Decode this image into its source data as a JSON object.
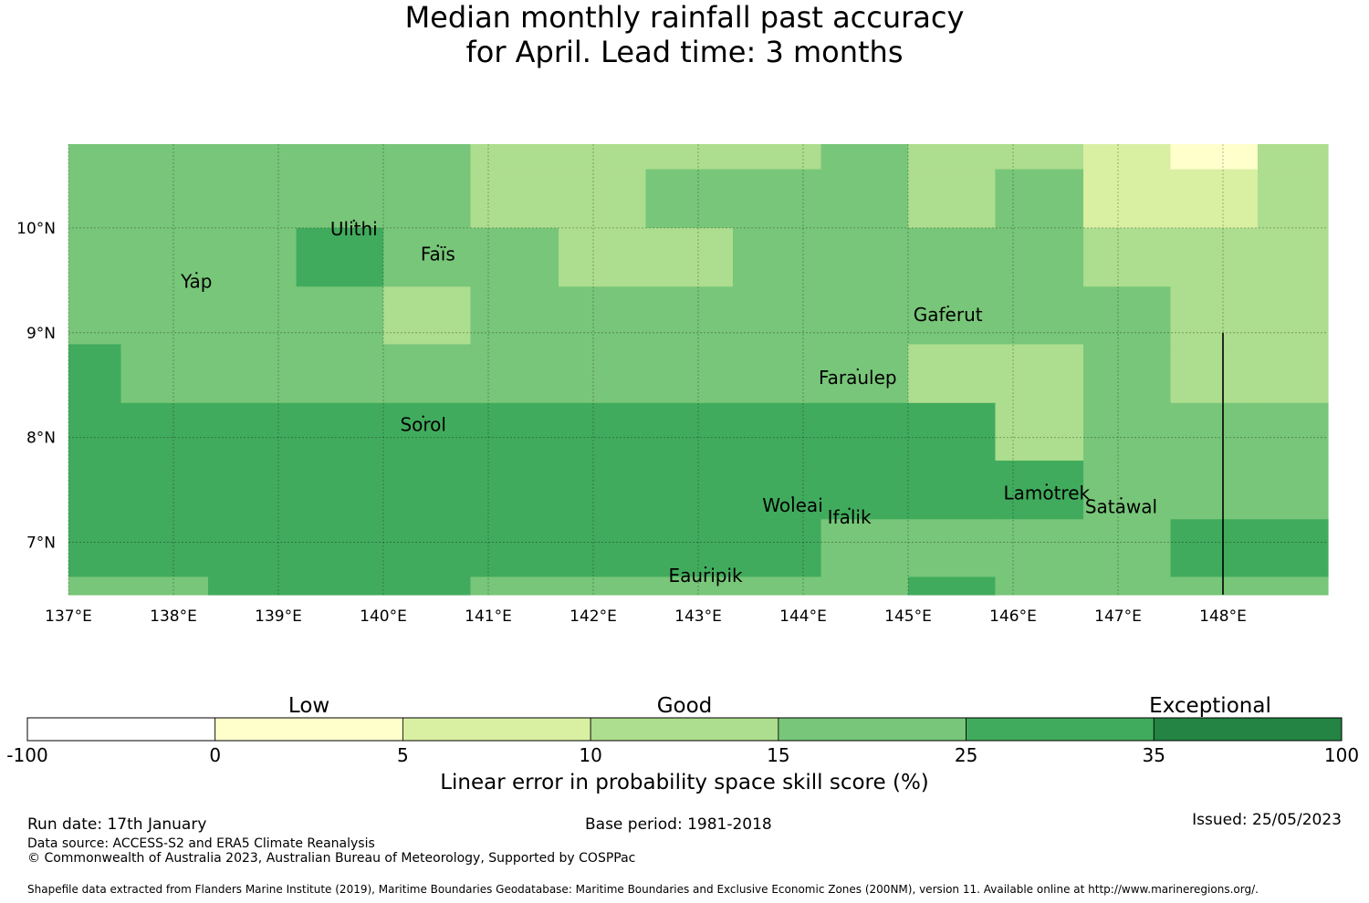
{
  "title": {
    "line1": "Median monthly rainfall past accuracy",
    "line2": "for April. Lead time: 3 months"
  },
  "map": {
    "lon_range": [
      137.0,
      149.0
    ],
    "lat_range": [
      6.5,
      10.8
    ],
    "x_ticks": [
      {
        "value": 137,
        "label": "137°E"
      },
      {
        "value": 138,
        "label": "138°E"
      },
      {
        "value": 139,
        "label": "139°E"
      },
      {
        "value": 140,
        "label": "140°E"
      },
      {
        "value": 141,
        "label": "141°E"
      },
      {
        "value": 142,
        "label": "142°E"
      },
      {
        "value": 143,
        "label": "143°E"
      },
      {
        "value": 144,
        "label": "144°E"
      },
      {
        "value": 145,
        "label": "145°E"
      },
      {
        "value": 146,
        "label": "146°E"
      },
      {
        "value": 147,
        "label": "147°E"
      },
      {
        "value": 148,
        "label": "148°E"
      }
    ],
    "y_ticks": [
      {
        "value": 10,
        "label": "10°N"
      },
      {
        "value": 9,
        "label": "9°N"
      },
      {
        "value": 8,
        "label": "8°N"
      },
      {
        "value": 7,
        "label": "7°N"
      }
    ],
    "cell_colors": [
      "#ffffff",
      "#ffffcc",
      "#d9f0a3",
      "#addd8e",
      "#78c679",
      "#41ab5d",
      "#238443"
    ],
    "grid_lon_edges": [
      137.0,
      137.5,
      138.33,
      139.17,
      140.0,
      140.83,
      141.67,
      142.5,
      143.33,
      144.17,
      145.0,
      145.83,
      146.67,
      147.5,
      148.33,
      149.0
    ],
    "grid_lat_edges": [
      10.8,
      10.56,
      10.0,
      9.44,
      8.89,
      8.33,
      7.78,
      7.22,
      6.67,
      6.5
    ],
    "grid_classes": [
      [
        4,
        4,
        4,
        4,
        4,
        3,
        3,
        3,
        3,
        4,
        3,
        3,
        2,
        1,
        3
      ],
      [
        4,
        4,
        4,
        4,
        4,
        3,
        3,
        4,
        4,
        4,
        3,
        4,
        2,
        2,
        3
      ],
      [
        4,
        4,
        4,
        5,
        4,
        4,
        3,
        3,
        4,
        4,
        4,
        4,
        3,
        3,
        3
      ],
      [
        4,
        4,
        4,
        4,
        3,
        4,
        4,
        4,
        4,
        4,
        4,
        4,
        4,
        3,
        3
      ],
      [
        5,
        4,
        4,
        4,
        4,
        4,
        4,
        4,
        4,
        4,
        3,
        3,
        4,
        3,
        3
      ],
      [
        5,
        5,
        5,
        5,
        5,
        5,
        5,
        5,
        5,
        5,
        5,
        3,
        4,
        4,
        4
      ],
      [
        5,
        5,
        5,
        5,
        5,
        5,
        5,
        5,
        5,
        5,
        5,
        5,
        4,
        4,
        4
      ],
      [
        5,
        5,
        5,
        5,
        5,
        5,
        5,
        5,
        5,
        4,
        4,
        4,
        4,
        5,
        5
      ],
      [
        4,
        4,
        5,
        5,
        5,
        4,
        4,
        4,
        4,
        4,
        5,
        4,
        4,
        4,
        4
      ]
    ],
    "places": [
      {
        "name": "Yap",
        "lon": 138.22,
        "lat": 9.5
      },
      {
        "name": "Ulithi",
        "lon": 139.72,
        "lat": 10.0
      },
      {
        "name": "Faïs",
        "lon": 140.52,
        "lat": 9.76
      },
      {
        "name": "Gaferut",
        "lon": 145.38,
        "lat": 9.18
      },
      {
        "name": "Faraulep",
        "lon": 144.52,
        "lat": 8.58
      },
      {
        "name": "Sorol",
        "lon": 140.38,
        "lat": 8.13
      },
      {
        "name": "Woleai",
        "lon": 143.9,
        "lat": 7.36
      },
      {
        "name": "Ifalik",
        "lon": 144.44,
        "lat": 7.25
      },
      {
        "name": "Lamotrek",
        "lon": 146.32,
        "lat": 7.48
      },
      {
        "name": "Satawal",
        "lon": 147.03,
        "lat": 7.35
      },
      {
        "name": "Eauripik",
        "lon": 143.07,
        "lat": 6.69
      }
    ],
    "boundary_line": {
      "lon": 148.0,
      "lat_from": 6.5,
      "lat_to": 9.0
    }
  },
  "colorbar": {
    "categories": [
      {
        "label": "Low",
        "at": 1.5
      },
      {
        "label": "Good",
        "at": 3.5
      },
      {
        "label": "Exceptional",
        "at": 6.3
      }
    ],
    "bins": [
      {
        "from": "-100",
        "to": "0",
        "color": "#ffffff"
      },
      {
        "from": "0",
        "to": "5",
        "color": "#ffffcc"
      },
      {
        "from": "5",
        "to": "10",
        "color": "#d9f0a3"
      },
      {
        "from": "10",
        "to": "15",
        "color": "#addd8e"
      },
      {
        "from": "15",
        "to": "25",
        "color": "#78c679"
      },
      {
        "from": "25",
        "to": "35",
        "color": "#41ab5d"
      },
      {
        "from": "35",
        "to": "100",
        "color": "#238443"
      }
    ],
    "tick_labels": [
      "-100",
      "0",
      "5",
      "10",
      "15",
      "25",
      "35",
      "100"
    ],
    "label": "Linear error in probability space skill score (%)"
  },
  "footer": {
    "run_date": "Run date: 17th January",
    "base_period": "Base period: 1981-2018",
    "issued": "Issued: 25/05/2023",
    "data_source": "Data source: ACCESS-S2 and ERA5 Climate Reanalysis",
    "copyright": "© Commonwealth of Australia 2023, Australian Bureau of Meteorology, Supported by COSPPac",
    "shapefile": "Shapefile data extracted from Flanders Marine Institute (2019), Maritime Boundaries Geodatabase: Maritime Boundaries and Exclusive Economic Zones (200NM), version 11. Available online at http://www.marineregions.org/."
  }
}
